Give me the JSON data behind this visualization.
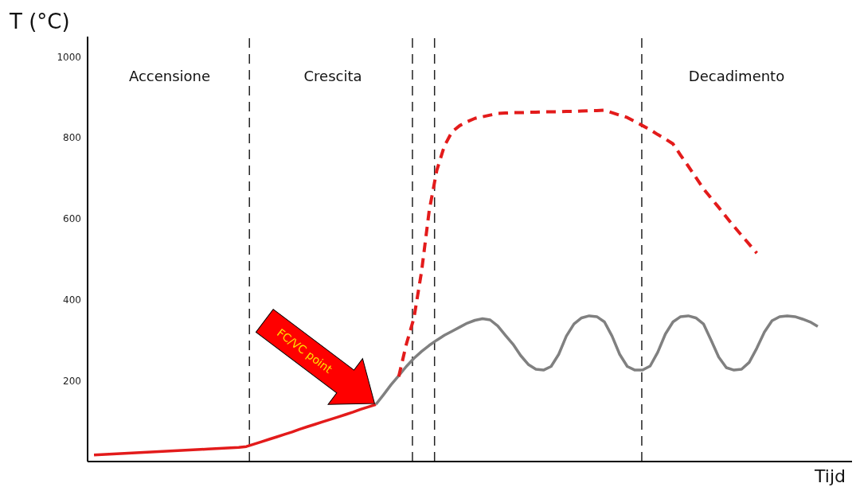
{
  "chart_data": {
    "type": "line",
    "xlabel": "Tijd",
    "ylabel": "T (°C)",
    "categories": [
      null,
      null,
      null,
      null,
      null,
      null,
      null,
      null,
      null,
      null,
      null,
      null,
      null,
      null,
      null,
      null,
      null,
      null,
      null,
      null,
      null,
      null,
      null,
      null,
      null,
      null,
      null,
      null,
      null,
      null,
      null,
      null,
      null,
      null,
      null,
      null,
      null,
      null,
      null,
      null,
      null,
      null,
      null,
      null,
      null,
      null,
      null,
      null,
      null,
      null,
      null,
      null,
      null,
      null,
      null,
      null,
      null,
      null,
      null,
      null,
      null,
      null,
      null,
      null,
      null,
      null,
      null,
      null,
      null,
      null,
      null,
      null,
      null,
      null,
      null,
      null,
      null,
      null,
      null,
      null,
      null,
      null,
      null,
      null,
      null,
      null,
      null,
      null,
      null,
      null,
      null,
      null,
      null,
      null,
      null,
      null
    ],
    "ylim": [
      0,
      1050
    ],
    "yticks": [
      200,
      400,
      600,
      800,
      1000
    ],
    "tick_labels": "y",
    "grid": false,
    "legend": false,
    "marker": "none",
    "series": [
      {
        "color": "#e31b1b",
        "line_style": "solid",
        "values": [
          16,
          17,
          18,
          19,
          20,
          21,
          22,
          23,
          24,
          25,
          26,
          27,
          28,
          29,
          30,
          31,
          32,
          33,
          34,
          35,
          37,
          43,
          49,
          55,
          61,
          67,
          73,
          80,
          86,
          92,
          98,
          104,
          110,
          116,
          122,
          129,
          135,
          141,
          null,
          null,
          null,
          null,
          null,
          null,
          null,
          null,
          null,
          null,
          null,
          null,
          null,
          null,
          null,
          null,
          null,
          null,
          null,
          null,
          null,
          null,
          null,
          null,
          null,
          null,
          null,
          null,
          null,
          null,
          null,
          null,
          null,
          null,
          null,
          null,
          null,
          null,
          null,
          null,
          null,
          null,
          null,
          null,
          null,
          null,
          null,
          null,
          null,
          null,
          null,
          null,
          null,
          null,
          null,
          null,
          null,
          null
        ]
      },
      {
        "color": "#808080",
        "line_style": "solid",
        "values": [
          null,
          null,
          null,
          null,
          null,
          null,
          null,
          null,
          null,
          null,
          null,
          null,
          null,
          null,
          null,
          null,
          null,
          null,
          null,
          null,
          null,
          null,
          null,
          null,
          null,
          null,
          null,
          null,
          null,
          null,
          null,
          null,
          null,
          null,
          null,
          null,
          null,
          141,
          165,
          190,
          212,
          235,
          255,
          272,
          287,
          300,
          312,
          322,
          332,
          342,
          349,
          353,
          350,
          335,
          312,
          290,
          262,
          240,
          228,
          226,
          235,
          265,
          310,
          340,
          355,
          360,
          358,
          345,
          310,
          265,
          235,
          226,
          226,
          236,
          270,
          315,
          345,
          358,
          360,
          355,
          340,
          300,
          258,
          232,
          226,
          228,
          245,
          280,
          320,
          348,
          358,
          360,
          358,
          352,
          345,
          334
        ]
      },
      {
        "color": "#e31b1b",
        "line_style": "dashed",
        "values": [
          null,
          null,
          null,
          null,
          null,
          null,
          null,
          null,
          null,
          null,
          null,
          null,
          null,
          null,
          null,
          null,
          null,
          null,
          null,
          null,
          null,
          null,
          null,
          null,
          null,
          null,
          null,
          null,
          null,
          null,
          null,
          null,
          null,
          null,
          null,
          null,
          null,
          null,
          null,
          null,
          210,
          290,
          355,
          470,
          620,
          720,
          780,
          815,
          830,
          840,
          848,
          852,
          856,
          860,
          861,
          862,
          862,
          863,
          863,
          864,
          864,
          864,
          865,
          865,
          866,
          867,
          867,
          868,
          862,
          856,
          850,
          840,
          830,
          820,
          808,
          797,
          785,
          757,
          730,
          702,
          674,
          651,
          628,
          604,
          581,
          559,
          537,
          515,
          null,
          null,
          null,
          null,
          null,
          null,
          null,
          null
        ]
      }
    ],
    "annotations": [
      "Accensione",
      "Crescita",
      "Decadimento",
      "FC/VC point"
    ]
  }
}
